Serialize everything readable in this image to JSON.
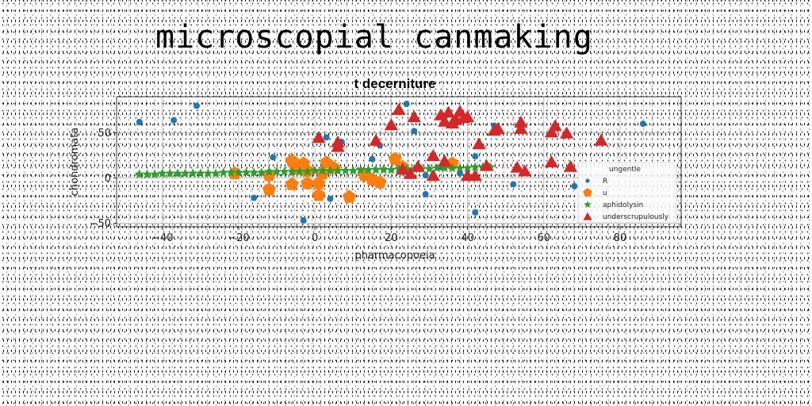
{
  "page_title": "microscopial canmaking",
  "chart_data": {
    "type": "scatter",
    "title": "t decerniture",
    "xlabel": "pharmacopoeia",
    "ylabel": "chondromata",
    "xlim": [
      -52,
      96
    ],
    "ylim": [
      -54,
      90
    ],
    "xticks": [
      -40,
      -20,
      0,
      20,
      40,
      60,
      80
    ],
    "yticks": [
      -50,
      0,
      50
    ],
    "grid": true,
    "legend": {
      "title": "ungentle",
      "position": "lower-right"
    },
    "series": [
      {
        "name": "R",
        "color": "#1f77b4",
        "marker": "circle",
        "points": [
          [
            -46,
            62
          ],
          [
            -37,
            64
          ],
          [
            -31,
            80
          ],
          [
            -16,
            -22
          ],
          [
            -11,
            23
          ],
          [
            -3,
            -47
          ],
          [
            3,
            45
          ],
          [
            4,
            -23
          ],
          [
            7,
            40
          ],
          [
            12,
            5
          ],
          [
            15,
            21
          ],
          [
            17,
            36
          ],
          [
            24,
            82
          ],
          [
            26,
            52
          ],
          [
            29,
            -18
          ],
          [
            29,
            3
          ],
          [
            33,
            12
          ],
          [
            38,
            5
          ],
          [
            42,
            -38
          ],
          [
            42,
            24
          ],
          [
            47,
            58
          ],
          [
            52,
            -7
          ],
          [
            68,
            -9
          ],
          [
            86,
            60
          ]
        ]
      },
      {
        "name": "u",
        "color": "#ff7f0e",
        "marker": "pentagon",
        "points": [
          [
            -21,
            5
          ],
          [
            -12,
            -13
          ],
          [
            -12,
            3
          ],
          [
            -6,
            19
          ],
          [
            -6,
            -7
          ],
          [
            -5,
            10
          ],
          [
            -3,
            16
          ],
          [
            -2,
            -6
          ],
          [
            -2,
            8
          ],
          [
            1,
            -19
          ],
          [
            1,
            -6
          ],
          [
            2,
            5
          ],
          [
            3,
            17
          ],
          [
            5,
            11
          ],
          [
            9,
            -21
          ],
          [
            13,
            3
          ],
          [
            15,
            -2
          ],
          [
            17,
            -5
          ],
          [
            21,
            21
          ],
          [
            23,
            12
          ],
          [
            36,
            16
          ]
        ]
      },
      {
        "name": "aphidolysin",
        "color": "#2ca02c",
        "marker": "star",
        "points": [
          [
            -46,
            4
          ],
          [
            -44,
            4
          ],
          [
            -42,
            4
          ],
          [
            -40,
            5
          ],
          [
            -38,
            5
          ],
          [
            -36,
            5
          ],
          [
            -34,
            5
          ],
          [
            -32,
            5
          ],
          [
            -30,
            5
          ],
          [
            -28,
            5
          ],
          [
            -26,
            5
          ],
          [
            -24,
            6
          ],
          [
            -22,
            6
          ],
          [
            -20,
            6
          ],
          [
            -18,
            6
          ],
          [
            -16,
            6
          ],
          [
            -14,
            6
          ],
          [
            -12,
            7
          ],
          [
            -10,
            7
          ],
          [
            -8,
            7
          ],
          [
            -6,
            7
          ],
          [
            -4,
            7
          ],
          [
            -2,
            7
          ],
          [
            0,
            8
          ],
          [
            2,
            8
          ],
          [
            4,
            8
          ],
          [
            6,
            8
          ],
          [
            8,
            8
          ],
          [
            10,
            8
          ],
          [
            12,
            9
          ],
          [
            14,
            9
          ],
          [
            16,
            9
          ],
          [
            18,
            9
          ],
          [
            20,
            9
          ],
          [
            22,
            10
          ],
          [
            24,
            10
          ],
          [
            26,
            10
          ],
          [
            28,
            10
          ],
          [
            30,
            10
          ],
          [
            32,
            11
          ],
          [
            34,
            11
          ],
          [
            36,
            11
          ],
          [
            38,
            11
          ],
          [
            40,
            11
          ],
          [
            42,
            12
          ],
          [
            44,
            12
          ],
          [
            46,
            12
          ]
        ]
      },
      {
        "name": "underscrupulously",
        "color": "#d62728",
        "marker": "triangle",
        "points": [
          [
            1,
            45
          ],
          [
            6,
            35
          ],
          [
            6,
            40
          ],
          [
            16,
            42
          ],
          [
            20,
            59
          ],
          [
            22,
            76
          ],
          [
            23,
            10
          ],
          [
            25,
            5
          ],
          [
            26,
            68
          ],
          [
            27,
            13
          ],
          [
            31,
            25
          ],
          [
            31,
            3
          ],
          [
            33,
            70
          ],
          [
            34,
            63
          ],
          [
            34,
            19
          ],
          [
            35,
            73
          ],
          [
            36,
            61
          ],
          [
            37,
            65
          ],
          [
            38,
            74
          ],
          [
            39,
            67
          ],
          [
            40,
            68
          ],
          [
            40,
            3
          ],
          [
            42,
            3
          ],
          [
            43,
            38
          ],
          [
            45,
            14
          ],
          [
            47,
            53
          ],
          [
            48,
            55
          ],
          [
            53,
            12
          ],
          [
            54,
            55
          ],
          [
            54,
            62
          ],
          [
            55,
            8
          ],
          [
            62,
            18
          ],
          [
            62,
            51
          ],
          [
            63,
            58
          ],
          [
            66,
            50
          ],
          [
            67,
            13
          ],
          [
            75,
            42
          ]
        ]
      }
    ]
  }
}
